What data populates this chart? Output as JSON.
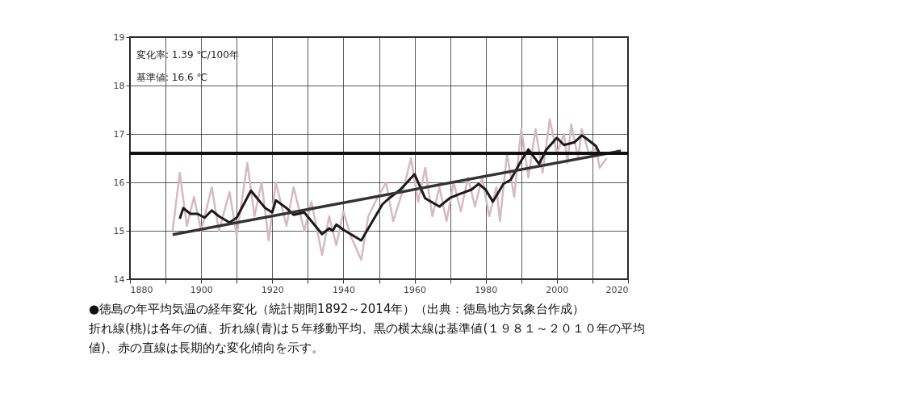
{
  "chart_data": {
    "type": "line",
    "xlim": [
      1880,
      2020
    ],
    "xticks": [
      1880,
      {
        "value": 1890,
        "label": null
      },
      1900,
      {
        "value": 1910,
        "label": null
      },
      1920,
      {
        "value": 1930,
        "label": null
      },
      1940,
      {
        "value": 1950,
        "label": null
      },
      1960,
      {
        "value": 1970,
        "label": null
      },
      1980,
      {
        "value": 1990,
        "label": null
      },
      2000,
      {
        "value": 2010,
        "label": null
      },
      2020
    ],
    "ylim": [
      14,
      19
    ],
    "yticks": [
      14,
      15,
      16,
      17,
      18,
      19
    ],
    "grid": true,
    "legend": false,
    "line_style": "solid",
    "marker": "none",
    "series": [
      {
        "color": "#d6b9c2",
        "x": [
          1892,
          1894,
          1896,
          1898,
          1900,
          1903,
          1905,
          1908,
          1910,
          1913,
          1915,
          1917,
          1919,
          1921,
          1924,
          1926,
          1929,
          1931,
          1934,
          1936,
          1938,
          1940,
          1942,
          1945,
          1947,
          1949,
          1952,
          1954,
          1957,
          1959,
          1961,
          1963,
          1965,
          1967,
          1969,
          1971,
          1973,
          1975,
          1977,
          1979,
          1981,
          1983,
          1984,
          1986,
          1988,
          1990,
          1992,
          1994,
          1996,
          1998,
          2000,
          2002,
          2003,
          2004,
          2006,
          2007,
          2009,
          2011,
          2012,
          2014
        ],
        "values": [
          15.0,
          16.2,
          15.1,
          15.7,
          15.0,
          15.9,
          15.0,
          15.8,
          14.9,
          16.4,
          15.3,
          16.0,
          14.8,
          16.0,
          15.1,
          15.9,
          15.0,
          15.6,
          14.5,
          15.3,
          14.7,
          15.4,
          14.9,
          14.4,
          15.3,
          15.6,
          16.0,
          15.2,
          15.9,
          16.5,
          15.6,
          16.3,
          15.3,
          15.9,
          15.2,
          16.0,
          15.4,
          16.1,
          15.5,
          16.1,
          15.3,
          15.9,
          15.2,
          16.6,
          15.7,
          17.1,
          16.1,
          17.1,
          16.2,
          17.3,
          16.6,
          17.0,
          16.4,
          17.2,
          16.5,
          17.1,
          16.6,
          16.7,
          16.3,
          16.5
        ]
      },
      {
        "color": "#1a1a1a",
        "x": [
          1894,
          1895,
          1897,
          1899,
          1901,
          1903,
          1905,
          1908,
          1910,
          1914,
          1918,
          1920,
          1921,
          1924,
          1926,
          1929,
          1931,
          1934,
          1936,
          1937,
          1938,
          1940,
          1945,
          1947,
          1951,
          1953,
          1956,
          1960,
          1963,
          1967,
          1970,
          1973,
          1976,
          1978,
          1980,
          1982,
          1985,
          1987,
          1990,
          1992,
          1995,
          1997,
          2000,
          2002,
          2005,
          2007,
          2008,
          2011,
          2012
        ],
        "values": [
          15.25,
          15.47,
          15.35,
          15.35,
          15.27,
          15.42,
          15.3,
          15.17,
          15.27,
          15.83,
          15.47,
          15.38,
          15.63,
          15.47,
          15.33,
          15.38,
          15.2,
          14.93,
          15.05,
          15.0,
          15.13,
          15.02,
          14.8,
          15.05,
          15.55,
          15.68,
          15.85,
          16.17,
          15.67,
          15.5,
          15.68,
          15.77,
          15.85,
          15.97,
          15.85,
          15.6,
          15.97,
          16.05,
          16.45,
          16.68,
          16.38,
          16.67,
          16.92,
          16.77,
          16.83,
          16.97,
          16.92,
          16.75,
          16.6
        ]
      },
      {
        "type": "line",
        "color": "#333333",
        "x": [
          1892,
          2018
        ],
        "values": [
          14.92,
          16.65
        ]
      }
    ],
    "ref_lines": [
      {
        "axis": "y",
        "value": 16.6,
        "color": "#111111"
      }
    ],
    "annotations": [
      "変化率: 1.39 ℃/100年",
      "基準値: 16.6 ℃",
      "●徳島の年平均気温の経年変化（統計期間1892～2014年）（出典：徳島地方気象台作成）",
      "折れ線(桃)は各年の値、折れ線(青)は５年移動平均、黒の横太線は基準値(１９８１～２０１０年の平均",
      "値)、赤の直線は長期的な変化傾向を示す。"
    ]
  }
}
